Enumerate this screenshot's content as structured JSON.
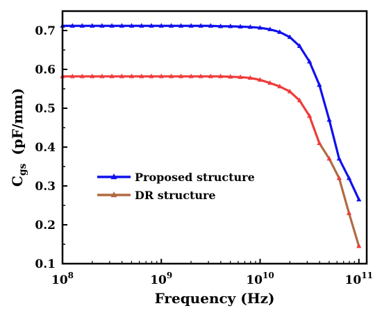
{
  "chart_data": {
    "type": "line",
    "title": "",
    "xlabel": "Frequency (Hz)",
    "ylabel": {
      "main": "C",
      "sub": "gs",
      "rest": "(pF/mm)"
    },
    "x_scale": "log",
    "xlim": [
      100000000,
      120000000000
    ],
    "ylim": [
      0.1,
      0.75
    ],
    "grid": false,
    "legend_position": "center-left",
    "x_ticks": [
      {
        "value": 100000000,
        "base": "10",
        "exp": "8"
      },
      {
        "value": 1000000000,
        "base": "10",
        "exp": "9"
      },
      {
        "value": 10000000000,
        "base": "10",
        "exp": "10"
      },
      {
        "value": 100000000000,
        "base": "10",
        "exp": "11"
      }
    ],
    "y_ticks": [
      {
        "value": 0.1,
        "label": "0.1"
      },
      {
        "value": 0.2,
        "label": "0.2"
      },
      {
        "value": 0.3,
        "label": "0.3"
      },
      {
        "value": 0.4,
        "label": "0.4"
      },
      {
        "value": 0.5,
        "label": "0.5"
      },
      {
        "value": 0.6,
        "label": "0.6"
      },
      {
        "value": 0.7,
        "label": "0.7"
      }
    ],
    "series": [
      {
        "name": "Proposed structure",
        "color": "#1010ee",
        "marker_color": "#1010ee",
        "x": [
          100000000,
          126000000,
          158000000,
          200000000,
          251000000,
          316000000,
          398000000,
          501000000,
          631000000,
          794000000,
          1000000000,
          1260000000,
          1580000000,
          2000000000,
          2510000000,
          3160000000,
          3980000000,
          5010000000,
          6310000000,
          7940000000,
          10000000000,
          12600000000,
          15800000000,
          20000000000,
          25100000000,
          31600000000,
          39800000000,
          50100000000,
          63100000000,
          79400000000,
          100000000000
        ],
        "y": [
          0.712,
          0.712,
          0.712,
          0.712,
          0.712,
          0.712,
          0.712,
          0.712,
          0.712,
          0.712,
          0.712,
          0.712,
          0.712,
          0.712,
          0.712,
          0.712,
          0.711,
          0.711,
          0.71,
          0.709,
          0.707,
          0.703,
          0.696,
          0.683,
          0.66,
          0.62,
          0.56,
          0.47,
          0.37,
          0.32,
          0.265
        ]
      },
      {
        "name": "DR structure",
        "color": "#f03a3a",
        "color_low": "#b06a40",
        "marker_color": "#f03a3a",
        "x": [
          100000000,
          126000000,
          158000000,
          200000000,
          251000000,
          316000000,
          398000000,
          501000000,
          631000000,
          794000000,
          1000000000,
          1260000000,
          1580000000,
          2000000000,
          2510000000,
          3160000000,
          3980000000,
          5010000000,
          6310000000,
          7940000000,
          10000000000,
          12600000000,
          15800000000,
          20000000000,
          25100000000,
          31600000000,
          39800000000,
          50100000000,
          63100000000,
          79400000000,
          100000000000
        ],
        "y": [
          0.582,
          0.582,
          0.582,
          0.582,
          0.582,
          0.582,
          0.582,
          0.582,
          0.582,
          0.582,
          0.582,
          0.582,
          0.582,
          0.582,
          0.582,
          0.582,
          0.582,
          0.581,
          0.58,
          0.578,
          0.573,
          0.565,
          0.556,
          0.543,
          0.52,
          0.48,
          0.41,
          0.37,
          0.32,
          0.23,
          0.145
        ]
      }
    ]
  }
}
